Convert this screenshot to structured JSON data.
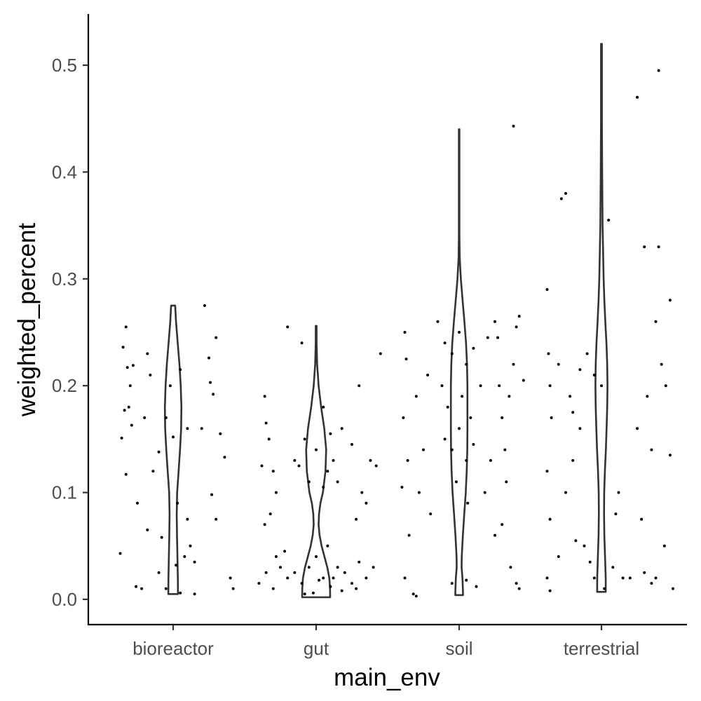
{
  "chart_data": {
    "type": "violin",
    "xlabel": "main_env",
    "ylabel": "weighted_percent",
    "categories": [
      "bioreactor",
      "gut",
      "soil",
      "terrestrial"
    ],
    "ylim": [
      -0.0235,
      0.548
    ],
    "yticks": [
      0.0,
      0.1,
      0.2,
      0.3,
      0.4,
      0.5
    ],
    "ytick_labels": [
      "0.0",
      "0.1",
      "0.2",
      "0.3",
      "0.4",
      "0.5"
    ],
    "grid": false,
    "legend": "none",
    "colors": {
      "outline": "#333333",
      "points": "#000000",
      "axis": "#000000",
      "tick_text": "#4d4d4d"
    },
    "violins": [
      {
        "category": "bioreactor",
        "profile": [
          [
            0.005,
            0.034
          ],
          [
            0.02,
            0.033
          ],
          [
            0.04,
            0.03
          ],
          [
            0.06,
            0.027
          ],
          [
            0.08,
            0.025
          ],
          [
            0.1,
            0.028
          ],
          [
            0.12,
            0.038
          ],
          [
            0.14,
            0.048
          ],
          [
            0.16,
            0.056
          ],
          [
            0.18,
            0.058
          ],
          [
            0.2,
            0.053
          ],
          [
            0.22,
            0.044
          ],
          [
            0.24,
            0.032
          ],
          [
            0.26,
            0.02
          ],
          [
            0.275,
            0.014
          ]
        ]
      },
      {
        "category": "gut",
        "profile": [
          [
            0.002,
            0.098
          ],
          [
            0.01,
            0.097
          ],
          [
            0.02,
            0.092
          ],
          [
            0.03,
            0.078
          ],
          [
            0.04,
            0.058
          ],
          [
            0.05,
            0.038
          ],
          [
            0.06,
            0.024
          ],
          [
            0.07,
            0.017
          ],
          [
            0.08,
            0.02
          ],
          [
            0.09,
            0.03
          ],
          [
            0.1,
            0.047
          ],
          [
            0.12,
            0.065
          ],
          [
            0.14,
            0.07
          ],
          [
            0.16,
            0.057
          ],
          [
            0.18,
            0.035
          ],
          [
            0.2,
            0.017
          ],
          [
            0.22,
            0.007
          ],
          [
            0.24,
            0.003
          ],
          [
            0.256,
            0.003
          ]
        ]
      },
      {
        "category": "soil",
        "profile": [
          [
            0.004,
            0.027
          ],
          [
            0.01,
            0.026
          ],
          [
            0.02,
            0.023
          ],
          [
            0.03,
            0.017
          ],
          [
            0.04,
            0.018
          ],
          [
            0.06,
            0.026
          ],
          [
            0.08,
            0.036
          ],
          [
            0.1,
            0.046
          ],
          [
            0.12,
            0.053
          ],
          [
            0.14,
            0.057
          ],
          [
            0.16,
            0.058
          ],
          [
            0.18,
            0.058
          ],
          [
            0.2,
            0.058
          ],
          [
            0.22,
            0.055
          ],
          [
            0.24,
            0.048
          ],
          [
            0.26,
            0.037
          ],
          [
            0.28,
            0.024
          ],
          [
            0.3,
            0.012
          ],
          [
            0.32,
            0.004
          ],
          [
            0.34,
            0.002
          ],
          [
            0.4,
            0.002
          ],
          [
            0.44,
            0.002
          ]
        ]
      },
      {
        "category": "terrestrial",
        "profile": [
          [
            0.007,
            0.03
          ],
          [
            0.02,
            0.03
          ],
          [
            0.04,
            0.025
          ],
          [
            0.06,
            0.02
          ],
          [
            0.08,
            0.018
          ],
          [
            0.1,
            0.019
          ],
          [
            0.12,
            0.024
          ],
          [
            0.14,
            0.031
          ],
          [
            0.16,
            0.036
          ],
          [
            0.18,
            0.04
          ],
          [
            0.2,
            0.042
          ],
          [
            0.22,
            0.04
          ],
          [
            0.24,
            0.035
          ],
          [
            0.26,
            0.027
          ],
          [
            0.28,
            0.02
          ],
          [
            0.3,
            0.015
          ],
          [
            0.35,
            0.008
          ],
          [
            0.4,
            0.005
          ],
          [
            0.45,
            0.003
          ],
          [
            0.5,
            0.003
          ],
          [
            0.52,
            0.003
          ]
        ]
      }
    ],
    "jitter": [
      {
        "category": "bioreactor",
        "points": [
          [
            -0.33,
            0.255
          ],
          [
            -0.35,
            0.236
          ],
          [
            -0.32,
            0.217
          ],
          [
            -0.28,
            0.219
          ],
          [
            -0.3,
            0.2
          ],
          [
            -0.34,
            0.177
          ],
          [
            -0.31,
            0.18
          ],
          [
            -0.29,
            0.163
          ],
          [
            -0.36,
            0.151
          ],
          [
            -0.33,
            0.117
          ],
          [
            -0.37,
            0.043
          ],
          [
            -0.26,
            0.012
          ],
          [
            -0.22,
            0.01
          ],
          [
            -0.18,
            0.23
          ],
          [
            -0.16,
            0.21
          ],
          [
            -0.2,
            0.17
          ],
          [
            -0.14,
            0.12
          ],
          [
            -0.18,
            0.065
          ],
          [
            -0.1,
            0.138
          ],
          [
            -0.05,
            0.17
          ],
          [
            -0.02,
            0.2
          ],
          [
            0.0,
            0.152
          ],
          [
            0.03,
            0.09
          ],
          [
            0.05,
            0.215
          ],
          [
            0.1,
            0.16
          ],
          [
            0.1,
            0.075
          ],
          [
            0.12,
            0.05
          ],
          [
            -0.08,
            0.058
          ],
          [
            -0.1,
            0.025
          ],
          [
            0.02,
            0.032
          ],
          [
            0.08,
            0.04
          ],
          [
            0.15,
            0.035
          ],
          [
            0.22,
            0.275
          ],
          [
            0.26,
            0.203
          ],
          [
            0.28,
            0.192
          ],
          [
            0.25,
            0.226
          ],
          [
            0.33,
            0.155
          ],
          [
            0.36,
            0.133
          ],
          [
            0.3,
            0.075
          ],
          [
            0.27,
            0.098
          ],
          [
            0.4,
            0.02
          ],
          [
            0.42,
            0.01
          ],
          [
            0.15,
            0.005
          ],
          [
            -0.05,
            0.01
          ],
          [
            0.2,
            0.16
          ],
          [
            0.3,
            0.245
          ],
          [
            -0.25,
            0.09
          ],
          [
            0.05,
            0.006
          ]
        ]
      },
      {
        "category": "gut",
        "points": [
          [
            -0.36,
            0.19
          ],
          [
            -0.35,
            0.165
          ],
          [
            -0.38,
            0.125
          ],
          [
            -0.33,
            0.15
          ],
          [
            -0.3,
            0.12
          ],
          [
            -0.28,
            0.1
          ],
          [
            -0.32,
            0.08
          ],
          [
            -0.36,
            0.07
          ],
          [
            -0.4,
            0.015
          ],
          [
            -0.2,
            0.255
          ],
          [
            -0.1,
            0.24
          ],
          [
            0.05,
            0.18
          ],
          [
            0.18,
            0.16
          ],
          [
            0.25,
            0.145
          ],
          [
            0.3,
            0.2
          ],
          [
            0.32,
            0.1
          ],
          [
            0.38,
            0.13
          ],
          [
            0.42,
            0.125
          ],
          [
            0.45,
            0.23
          ],
          [
            0.35,
            0.09
          ],
          [
            0.28,
            0.075
          ],
          [
            -0.15,
            0.13
          ],
          [
            -0.08,
            0.15
          ],
          [
            0.0,
            0.14
          ],
          [
            0.08,
            0.12
          ],
          [
            0.1,
            0.155
          ],
          [
            0.12,
            0.13
          ],
          [
            -0.05,
            0.11
          ],
          [
            0.05,
            0.105
          ],
          [
            -0.12,
            0.125
          ],
          [
            0.15,
            0.11
          ],
          [
            -0.25,
            0.03
          ],
          [
            -0.2,
            0.02
          ],
          [
            -0.15,
            0.025
          ],
          [
            -0.1,
            0.015
          ],
          [
            -0.05,
            0.03
          ],
          [
            0.0,
            0.04
          ],
          [
            0.05,
            0.02
          ],
          [
            0.1,
            0.012
          ],
          [
            0.15,
            0.03
          ],
          [
            0.2,
            0.025
          ],
          [
            0.25,
            0.015
          ],
          [
            0.3,
            0.035
          ],
          [
            0.35,
            0.02
          ],
          [
            0.4,
            0.03
          ],
          [
            -0.3,
            0.01
          ],
          [
            -0.28,
            0.04
          ],
          [
            -0.35,
            0.025
          ],
          [
            -0.22,
            0.045
          ],
          [
            0.18,
            0.008
          ],
          [
            0.08,
            0.05
          ],
          [
            -0.02,
            0.006
          ],
          [
            0.12,
            0.02
          ],
          [
            0.02,
            0.018
          ],
          [
            -0.08,
            0.005
          ],
          [
            0.28,
            0.01
          ]
        ]
      },
      {
        "category": "soil",
        "points": [
          [
            -0.38,
            0.25
          ],
          [
            -0.37,
            0.225
          ],
          [
            -0.39,
            0.17
          ],
          [
            -0.36,
            0.13
          ],
          [
            -0.4,
            0.105
          ],
          [
            -0.35,
            0.06
          ],
          [
            -0.38,
            0.02
          ],
          [
            -0.32,
            0.005
          ],
          [
            -0.3,
            0.19
          ],
          [
            -0.28,
            0.1
          ],
          [
            -0.25,
            0.14
          ],
          [
            -0.22,
            0.21
          ],
          [
            -0.15,
            0.26
          ],
          [
            -0.1,
            0.24
          ],
          [
            -0.05,
            0.23
          ],
          [
            0.0,
            0.25
          ],
          [
            0.05,
            0.22
          ],
          [
            0.1,
            0.235
          ],
          [
            -0.12,
            0.2
          ],
          [
            -0.08,
            0.18
          ],
          [
            0.02,
            0.19
          ],
          [
            0.08,
            0.17
          ],
          [
            -0.1,
            0.15
          ],
          [
            -0.05,
            0.14
          ],
          [
            0.0,
            0.16
          ],
          [
            0.05,
            0.13
          ],
          [
            0.1,
            0.145
          ],
          [
            -0.02,
            0.11
          ],
          [
            0.06,
            0.09
          ],
          [
            0.15,
            0.2
          ],
          [
            0.2,
            0.245
          ],
          [
            0.25,
            0.26
          ],
          [
            0.28,
            0.2
          ],
          [
            0.3,
            0.17
          ],
          [
            0.32,
            0.14
          ],
          [
            0.35,
            0.19
          ],
          [
            0.38,
            0.22
          ],
          [
            0.4,
            0.255
          ],
          [
            0.42,
            0.265
          ],
          [
            0.45,
            0.205
          ],
          [
            0.33,
            0.11
          ],
          [
            0.3,
            0.07
          ],
          [
            0.36,
            0.03
          ],
          [
            0.4,
            0.015
          ],
          [
            0.42,
            0.01
          ],
          [
            0.38,
            0.443
          ],
          [
            0.25,
            0.06
          ],
          [
            -0.2,
            0.08
          ],
          [
            -0.3,
            0.003
          ],
          [
            0.05,
            0.018
          ],
          [
            0.12,
            0.012
          ],
          [
            -0.05,
            0.015
          ],
          [
            0.18,
            0.1
          ],
          [
            0.22,
            0.13
          ],
          [
            0.27,
            0.245
          ]
        ]
      },
      {
        "category": "terrestrial",
        "points": [
          [
            -0.38,
            0.29
          ],
          [
            -0.37,
            0.23
          ],
          [
            -0.36,
            0.2
          ],
          [
            -0.35,
            0.17
          ],
          [
            -0.38,
            0.12
          ],
          [
            -0.36,
            0.075
          ],
          [
            -0.38,
            0.02
          ],
          [
            -0.36,
            0.008
          ],
          [
            -0.28,
            0.375
          ],
          [
            -0.25,
            0.38
          ],
          [
            -0.3,
            0.22
          ],
          [
            -0.22,
            0.19
          ],
          [
            -0.2,
            0.175
          ],
          [
            -0.15,
            0.16
          ],
          [
            -0.2,
            0.13
          ],
          [
            -0.25,
            0.1
          ],
          [
            -0.18,
            0.055
          ],
          [
            -0.12,
            0.05
          ],
          [
            -0.1,
            0.23
          ],
          [
            -0.05,
            0.21
          ],
          [
            0.0,
            0.2
          ],
          [
            0.05,
            0.355
          ],
          [
            0.1,
            0.08
          ],
          [
            0.15,
            0.02
          ],
          [
            0.2,
            0.02
          ],
          [
            0.25,
            0.47
          ],
          [
            0.3,
            0.33
          ],
          [
            0.35,
            0.14
          ],
          [
            0.38,
            0.26
          ],
          [
            0.42,
            0.22
          ],
          [
            0.45,
            0.2
          ],
          [
            0.4,
            0.33
          ],
          [
            0.44,
            0.05
          ],
          [
            0.48,
            0.28
          ],
          [
            0.48,
            0.135
          ],
          [
            0.5,
            0.01
          ],
          [
            0.38,
            0.02
          ],
          [
            0.35,
            0.015
          ],
          [
            0.3,
            0.025
          ],
          [
            0.4,
            0.495
          ],
          [
            0.32,
            0.19
          ],
          [
            -0.3,
            0.04
          ],
          [
            -0.05,
            0.02
          ],
          [
            -0.08,
            0.035
          ],
          [
            0.08,
            0.03
          ],
          [
            0.02,
            0.01
          ],
          [
            -0.15,
            0.215
          ],
          [
            0.12,
            0.1
          ],
          [
            0.25,
            0.16
          ],
          [
            0.28,
            0.075
          ]
        ]
      }
    ]
  }
}
